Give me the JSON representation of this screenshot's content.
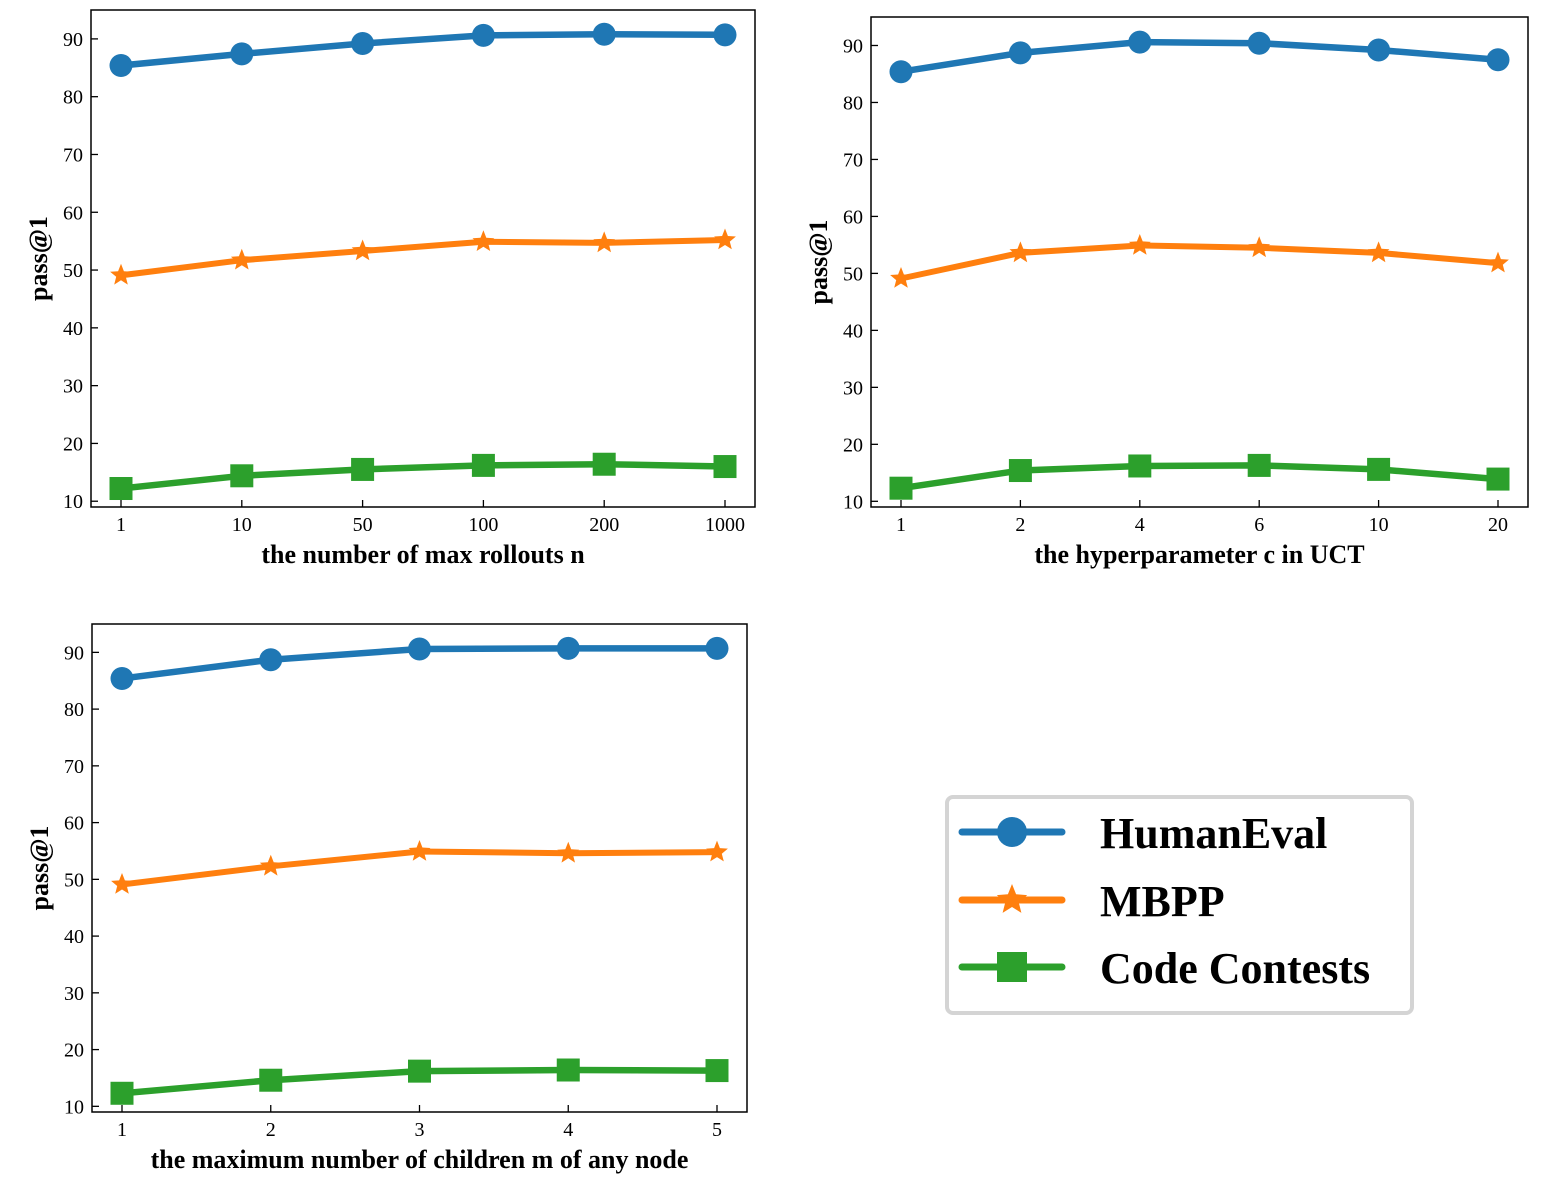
{
  "chart_data": [
    {
      "type": "line",
      "title": "",
      "xlabel": "the number of max rollouts n",
      "ylabel": "pass@1",
      "categories": [
        "1",
        "10",
        "50",
        "100",
        "200",
        "1000"
      ],
      "ylim": [
        9,
        95
      ],
      "yticks": [
        10,
        20,
        30,
        40,
        50,
        60,
        70,
        80,
        90
      ],
      "grid": false,
      "series": [
        {
          "name": "HumanEval",
          "values": [
            85.4,
            87.4,
            89.2,
            90.6,
            90.8,
            90.7
          ]
        },
        {
          "name": "MBPP",
          "values": [
            49.1,
            51.7,
            53.3,
            54.9,
            54.7,
            55.2
          ]
        },
        {
          "name": "Code Contests",
          "values": [
            12.2,
            14.4,
            15.5,
            16.2,
            16.4,
            16.0
          ]
        }
      ]
    },
    {
      "type": "line",
      "title": "",
      "xlabel": "the hyperparameter c in UCT",
      "ylabel": "pass@1",
      "categories": [
        "1",
        "2",
        "4",
        "6",
        "10",
        "20"
      ],
      "ylim": [
        9,
        95
      ],
      "yticks": [
        10,
        20,
        30,
        40,
        50,
        60,
        70,
        80,
        90
      ],
      "grid": false,
      "series": [
        {
          "name": "HumanEval",
          "values": [
            85.4,
            88.7,
            90.6,
            90.4,
            89.2,
            87.5
          ]
        },
        {
          "name": "MBPP",
          "values": [
            49.1,
            53.6,
            54.9,
            54.5,
            53.6,
            51.8
          ]
        },
        {
          "name": "Code Contests",
          "values": [
            12.3,
            15.4,
            16.2,
            16.3,
            15.6,
            13.9
          ]
        }
      ]
    },
    {
      "type": "line",
      "title": "",
      "xlabel": "the maximum number of children m of any node",
      "ylabel": "pass@1",
      "categories": [
        "1",
        "2",
        "3",
        "4",
        "5"
      ],
      "ylim": [
        9,
        95
      ],
      "yticks": [
        10,
        20,
        30,
        40,
        50,
        60,
        70,
        80,
        90
      ],
      "grid": false,
      "series": [
        {
          "name": "HumanEval",
          "values": [
            85.4,
            88.7,
            90.6,
            90.7,
            90.7
          ]
        },
        {
          "name": "MBPP",
          "values": [
            49.1,
            52.3,
            54.9,
            54.6,
            54.8
          ]
        },
        {
          "name": "Code Contests",
          "values": [
            12.3,
            14.6,
            16.2,
            16.4,
            16.3
          ]
        }
      ]
    }
  ],
  "legend": {
    "placement": "bottom-right",
    "entries": [
      {
        "name": "HumanEval",
        "color": "#1f77b4",
        "marker": "circle"
      },
      {
        "name": "MBPP",
        "color": "#ff7f0e",
        "marker": "star"
      },
      {
        "name": "Code Contests",
        "color": "#2ca02c",
        "marker": "square"
      }
    ]
  }
}
